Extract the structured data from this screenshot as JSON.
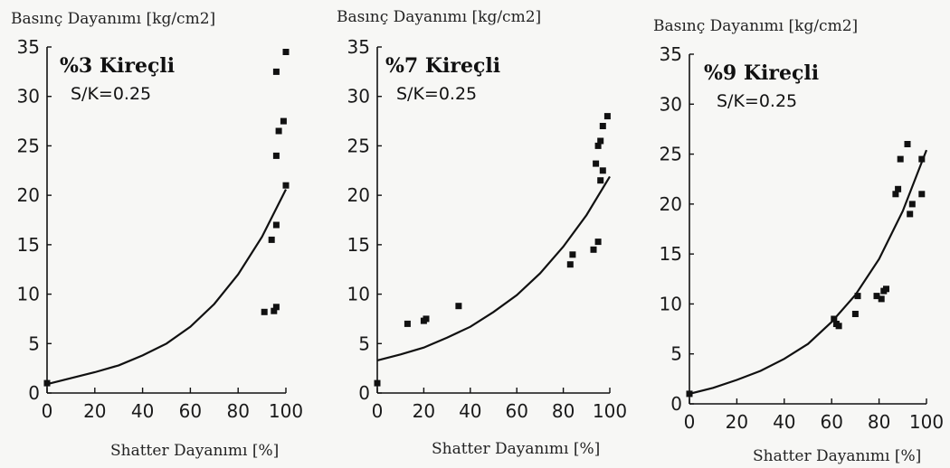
{
  "chart_data": [
    {
      "type": "scatter",
      "title": "%3 Kireçli",
      "subtitle": "S/K=0.25",
      "xlabel": "Shatter Dayanımı [%]",
      "ylabel": "Basınç Dayanımı [kg/cm2]",
      "xlim": [
        0,
        100
      ],
      "ylim": [
        0,
        35
      ],
      "xticks": [
        0,
        20,
        40,
        60,
        80,
        100
      ],
      "yticks": [
        0,
        5,
        10,
        15,
        20,
        25,
        30,
        35
      ],
      "grid": false,
      "points": [
        {
          "x": 0,
          "y": 1
        },
        {
          "x": 91,
          "y": 8.2
        },
        {
          "x": 95,
          "y": 8.3
        },
        {
          "x": 96,
          "y": 8.7
        },
        {
          "x": 94,
          "y": 15.5
        },
        {
          "x": 96,
          "y": 17
        },
        {
          "x": 96,
          "y": 24
        },
        {
          "x": 97,
          "y": 26.5
        },
        {
          "x": 96,
          "y": 32.5
        },
        {
          "x": 99,
          "y": 27.5
        },
        {
          "x": 100,
          "y": 34.5
        },
        {
          "x": 100,
          "y": 21
        }
      ],
      "fit_curve": {
        "x": [
          0,
          10,
          20,
          30,
          40,
          50,
          60,
          70,
          80,
          90,
          100
        ],
        "y": [
          0.9,
          1.5,
          2.1,
          2.8,
          3.8,
          5.0,
          6.7,
          9.0,
          12.0,
          15.8,
          20.6
        ]
      }
    },
    {
      "type": "scatter",
      "title": "%7 Kireçli",
      "subtitle": "S/K=0.25",
      "xlabel": "Shatter Dayanımı [%]",
      "ylabel": "Basınç Dayanımı [kg/cm2]",
      "xlim": [
        0,
        100
      ],
      "ylim": [
        0,
        35
      ],
      "xticks": [
        0,
        20,
        40,
        60,
        80,
        100
      ],
      "yticks": [
        0,
        5,
        10,
        15,
        20,
        25,
        30,
        35
      ],
      "grid": false,
      "points": [
        {
          "x": 0,
          "y": 1
        },
        {
          "x": 13,
          "y": 7
        },
        {
          "x": 20,
          "y": 7.3
        },
        {
          "x": 21,
          "y": 7.5
        },
        {
          "x": 35,
          "y": 8.8
        },
        {
          "x": 83,
          "y": 13
        },
        {
          "x": 84,
          "y": 14
        },
        {
          "x": 93,
          "y": 14.5
        },
        {
          "x": 95,
          "y": 15.3
        },
        {
          "x": 94,
          "y": 23.2
        },
        {
          "x": 95,
          "y": 25
        },
        {
          "x": 96,
          "y": 25.5
        },
        {
          "x": 96,
          "y": 21.5
        },
        {
          "x": 97,
          "y": 22.5
        },
        {
          "x": 97,
          "y": 27
        },
        {
          "x": 99,
          "y": 28
        }
      ],
      "fit_curve": {
        "x": [
          0,
          10,
          20,
          30,
          40,
          50,
          60,
          70,
          80,
          90,
          100
        ],
        "y": [
          3.3,
          3.9,
          4.6,
          5.6,
          6.7,
          8.2,
          9.9,
          12.1,
          14.8,
          18.0,
          21.9
        ]
      }
    },
    {
      "type": "scatter",
      "title": "%9 Kireçli",
      "subtitle": "S/K=0.25",
      "xlabel": "Shatter Dayanımı [%]",
      "ylabel": "Basınç Dayanımı [kg/cm2]",
      "xlim": [
        0,
        100
      ],
      "ylim": [
        0,
        35
      ],
      "xticks": [
        0,
        20,
        40,
        60,
        80,
        100
      ],
      "yticks": [
        0,
        5,
        10,
        15,
        20,
        25,
        30,
        35
      ],
      "grid": false,
      "points": [
        {
          "x": 0,
          "y": 1
        },
        {
          "x": 61,
          "y": 8.5
        },
        {
          "x": 62,
          "y": 8
        },
        {
          "x": 63,
          "y": 7.8
        },
        {
          "x": 70,
          "y": 9
        },
        {
          "x": 71,
          "y": 10.8
        },
        {
          "x": 79,
          "y": 10.8
        },
        {
          "x": 81,
          "y": 10.5
        },
        {
          "x": 82,
          "y": 11.3
        },
        {
          "x": 83,
          "y": 11.5
        },
        {
          "x": 87,
          "y": 21
        },
        {
          "x": 88,
          "y": 21.5
        },
        {
          "x": 89,
          "y": 24.5
        },
        {
          "x": 92,
          "y": 26
        },
        {
          "x": 93,
          "y": 19
        },
        {
          "x": 94,
          "y": 20
        },
        {
          "x": 98,
          "y": 24.5
        },
        {
          "x": 98,
          "y": 21
        }
      ],
      "fit_curve": {
        "x": [
          0,
          10,
          20,
          30,
          40,
          50,
          60,
          70,
          80,
          90,
          100
        ],
        "y": [
          1.0,
          1.6,
          2.4,
          3.3,
          4.5,
          6.0,
          8.2,
          10.9,
          14.5,
          19.3,
          25.4
        ]
      }
    }
  ]
}
